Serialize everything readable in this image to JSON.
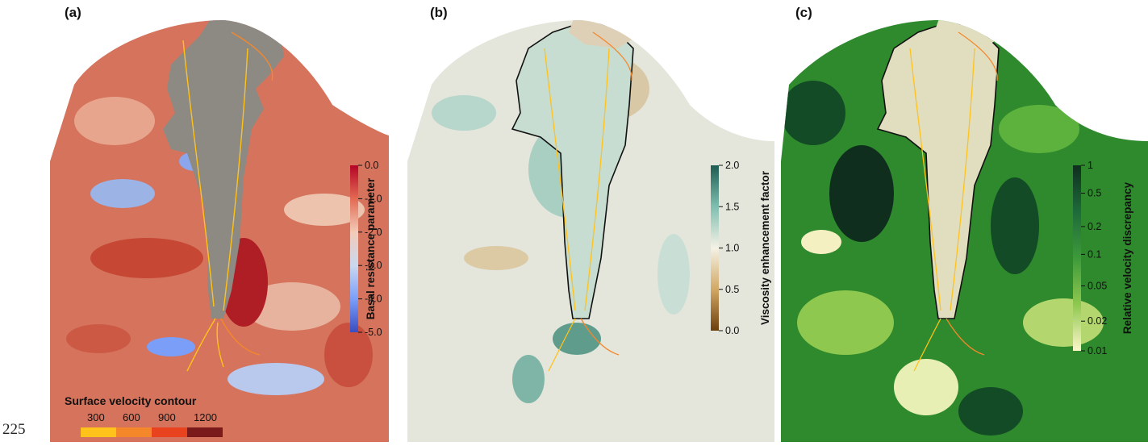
{
  "line_number": "225",
  "panels": [
    {
      "label": "(a)",
      "colorbar": {
        "title": "Basal resistance parameter",
        "ticks": [
          "0.0",
          "-1.0",
          "-2.0",
          "-3.0",
          "-4.0",
          "-5.0"
        ],
        "colors": [
          "#b40426",
          "#e36a53",
          "#f2cbb7",
          "#cad8ef",
          "#7b9ff9",
          "#3b4cc0"
        ]
      },
      "map_colors": {
        "background": "#d5735c",
        "glacier": "#8d8a84"
      }
    },
    {
      "label": "(b)",
      "colorbar": {
        "title": "Viscosity enhancement factor",
        "ticks": [
          "2.0",
          "1.5",
          "1.0",
          "0.5",
          "0.0"
        ],
        "colors": [
          "#1d5c52",
          "#7fbfb0",
          "#f5f2e6",
          "#d2a864",
          "#6b3f0e"
        ]
      },
      "map_colors": {
        "background": "#e4e6dc",
        "glacier": "#c7ddd2"
      }
    },
    {
      "label": "(c)",
      "colorbar": {
        "title": "Relative velocity discrepancy",
        "ticks": [
          "1",
          "0.5",
          "0.2",
          "0.1",
          "0.05",
          "0.02",
          "0.01"
        ],
        "colors": [
          "#0f2e1e",
          "#1e6b3a",
          "#3d9a3a",
          "#8fc84f",
          "#fbf6c9"
        ]
      },
      "map_colors": {
        "background": "#2e8a2c",
        "glacier": "#e1dec0"
      }
    }
  ],
  "surface_velocity_legend": {
    "title": "Surface velocity contour",
    "ticks": [
      "300",
      "600",
      "900",
      "1200"
    ],
    "colors": [
      "#ffc21a",
      "#f5872b",
      "#e8421f",
      "#7a1a1a"
    ]
  }
}
